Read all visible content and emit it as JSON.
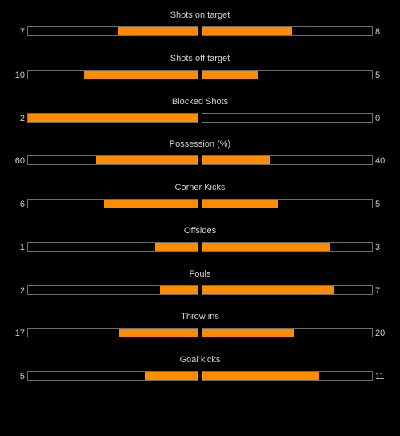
{
  "accent_color": "#ff8c00",
  "stats": [
    {
      "label": "Shots on target",
      "home": "7",
      "away": "8",
      "home_fill": 0.47,
      "away_fill": 0.53
    },
    {
      "label": "Shots off target",
      "home": "10",
      "away": "5",
      "home_fill": 0.67,
      "away_fill": 0.33
    },
    {
      "label": "Blocked Shots",
      "home": "2",
      "away": "0",
      "home_fill": 1.0,
      "away_fill": 0.0
    },
    {
      "label": "Possession (%)",
      "home": "60",
      "away": "40",
      "home_fill": 0.6,
      "away_fill": 0.4
    },
    {
      "label": "Corner Kicks",
      "home": "6",
      "away": "5",
      "home_fill": 0.55,
      "away_fill": 0.45
    },
    {
      "label": "Offsides",
      "home": "1",
      "away": "3",
      "home_fill": 0.25,
      "away_fill": 0.75
    },
    {
      "label": "Fouls",
      "home": "2",
      "away": "7",
      "home_fill": 0.22,
      "away_fill": 0.78
    },
    {
      "label": "Throw ins",
      "home": "17",
      "away": "20",
      "home_fill": 0.46,
      "away_fill": 0.54
    },
    {
      "label": "Goal kicks",
      "home": "5",
      "away": "11",
      "home_fill": 0.31,
      "away_fill": 0.69
    }
  ]
}
